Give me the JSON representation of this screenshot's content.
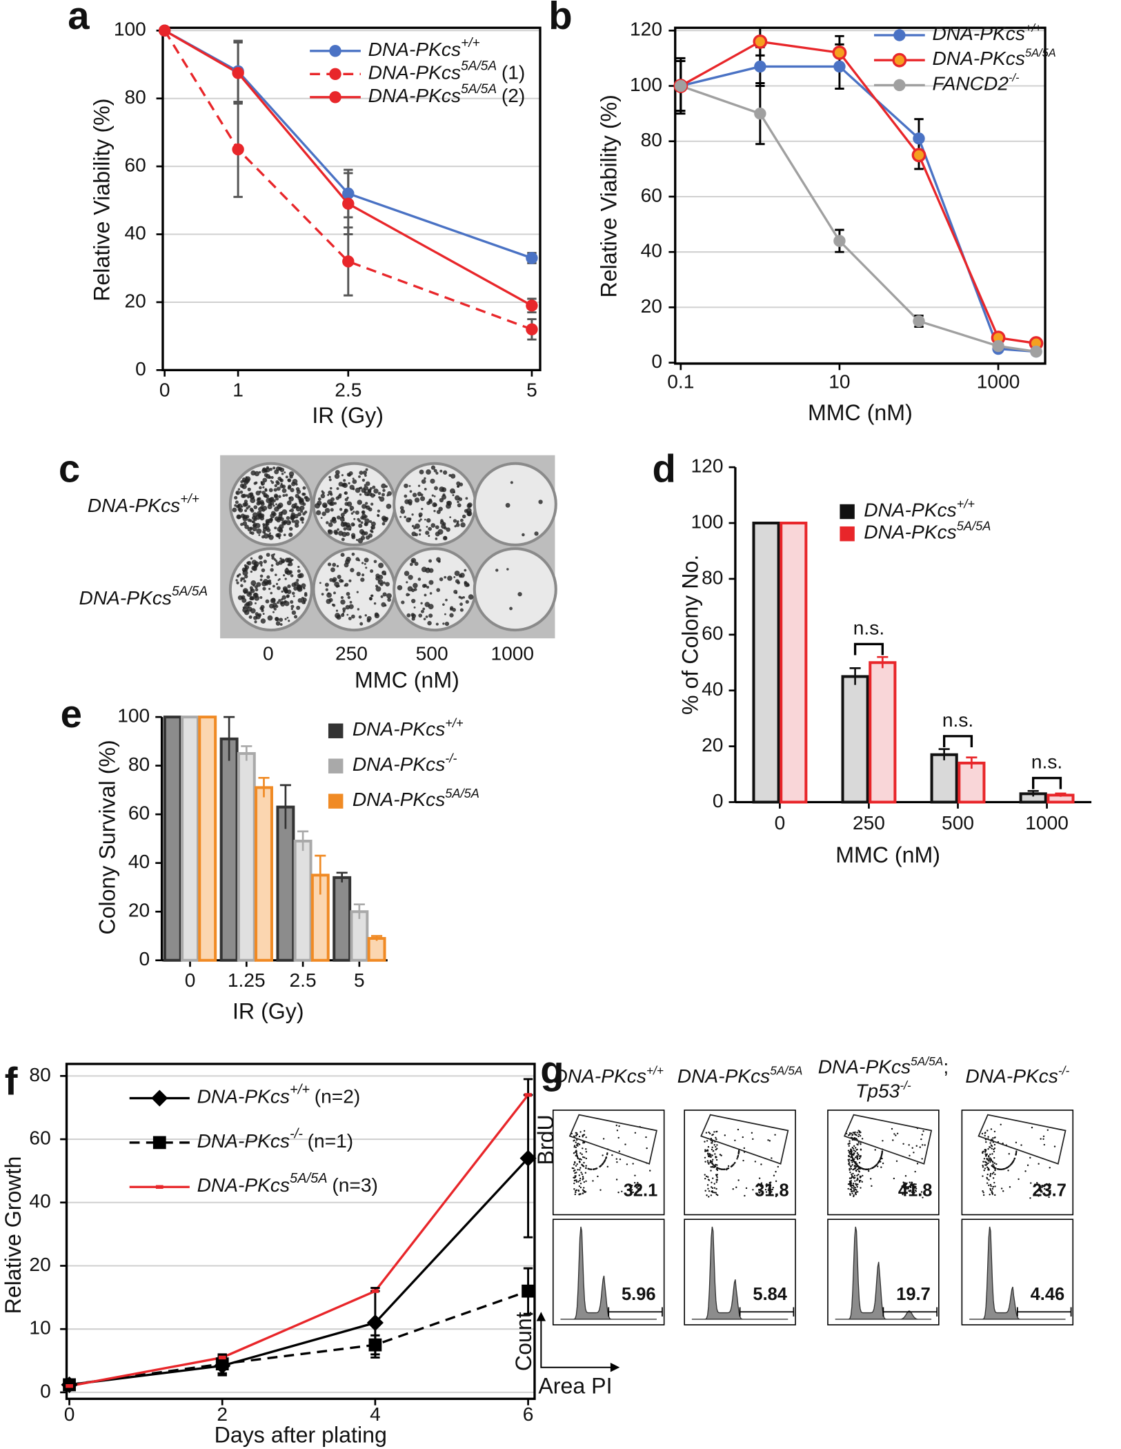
{
  "chart_data": [
    {
      "panel": "a",
      "type": "line",
      "xlabel": "IR (Gy)",
      "ylabel": "Relative Viability (%)",
      "x": [
        0,
        1,
        2.5,
        5
      ],
      "xlim": [
        0,
        5
      ],
      "xticks": [
        0,
        1,
        2.5,
        5
      ],
      "ylim": [
        0,
        100
      ],
      "yticks": [
        0,
        20,
        40,
        60,
        80,
        100
      ],
      "grid": true,
      "legend": "upper right",
      "error_color": "#555555",
      "series": [
        {
          "name": "DNA-PKcs",
          "sup": "+/+",
          "color": "#4a72c4",
          "values": [
            100,
            88,
            52,
            33
          ],
          "errors": [
            0,
            9,
            7,
            1.5
          ]
        },
        {
          "name": "DNA-PKcs",
          "sup": "5A/5A",
          "suffix": "(1)",
          "color": "#e8262a",
          "dash": true,
          "values": [
            100,
            65,
            32,
            12
          ],
          "errors": [
            0,
            14,
            10,
            3
          ]
        },
        {
          "name": "DNA-PKcs",
          "sup": "5A/5A",
          "suffix": "(2)",
          "color": "#e8262a",
          "values": [
            100,
            87.5,
            49,
            19
          ],
          "errors": [
            0,
            9,
            9,
            2
          ]
        }
      ]
    },
    {
      "panel": "b",
      "type": "line",
      "xlabel": "MMC (nM)",
      "ylabel": "Relative Viability (%)",
      "xscale": "log",
      "x": [
        0.1,
        1,
        10,
        100,
        1000,
        3000
      ],
      "xlim": [
        0.1,
        3500
      ],
      "xticks": [
        0.1,
        10,
        1000
      ],
      "ylim": [
        0,
        120
      ],
      "yticks": [
        0,
        20,
        40,
        60,
        80,
        100,
        120
      ],
      "grid": true,
      "legend": "upper right",
      "error_color": "#000000",
      "series": [
        {
          "name": "DNA-PKcs",
          "sup": "+/+",
          "color": "#4a72c4",
          "values": [
            100,
            107,
            107,
            81,
            5,
            4
          ],
          "errors": [
            10,
            7,
            8,
            7,
            1,
            1
          ]
        },
        {
          "name": "DNA-PKcs",
          "sup": "5A/5A",
          "color": "#e8262a",
          "marker_color": "#f5a020",
          "values": [
            100,
            116,
            112,
            75,
            9,
            7
          ],
          "errors": [
            9,
            5,
            6,
            5,
            1,
            1
          ]
        },
        {
          "name": "FANCD2",
          "sup": "-/-",
          "color": "#a0a0a0",
          "values": [
            100,
            90,
            44,
            15,
            6,
            4
          ],
          "errors": [
            9,
            11,
            4,
            2,
            1,
            1
          ]
        }
      ]
    },
    {
      "panel": "d",
      "type": "bar",
      "xlabel": "MMC (nM)",
      "ylabel": "% of Colony No.",
      "categories": [
        "0",
        "250",
        "500",
        "1000"
      ],
      "ylim": [
        0,
        120
      ],
      "yticks": [
        0,
        20,
        40,
        60,
        80,
        100,
        120
      ],
      "legend": "upper right",
      "series": [
        {
          "name": "DNA-PKcs",
          "sup": "+/+",
          "color": "#111111",
          "fill": "#d9d9d9",
          "values": [
            100,
            45,
            17,
            3
          ],
          "errors": [
            0,
            3,
            2,
            1
          ]
        },
        {
          "name": "DNA-PKcs",
          "sup": "5A/5A",
          "color": "#e8262a",
          "fill": "#f9d6d8",
          "values": [
            100,
            50,
            14,
            2.5
          ],
          "errors": [
            0,
            2,
            2,
            0.6
          ]
        }
      ],
      "annotations": [
        {
          "text": "n.s.",
          "x": "250"
        },
        {
          "text": "n.s.",
          "x": "500"
        },
        {
          "text": "n.s.",
          "x": "1000"
        }
      ]
    },
    {
      "panel": "e",
      "type": "bar",
      "xlabel": "IR (Gy)",
      "ylabel": "Colony Survival (%)",
      "categories": [
        "0",
        "1.25",
        "2.5",
        "5"
      ],
      "ylim": [
        0,
        100
      ],
      "yticks": [
        0,
        20,
        40,
        60,
        80,
        100
      ],
      "legend": "right",
      "series": [
        {
          "name": "DNA-PKcs",
          "sup": "+/+",
          "color": "#333333",
          "fill": "#8c8c8c",
          "values": [
            100,
            91,
            63,
            34
          ],
          "errors": [
            0,
            9,
            9,
            2
          ]
        },
        {
          "name": "DNA-PKcs",
          "sup": "-/-",
          "color": "#a9a9a9",
          "fill": "#e0e0e0",
          "values": [
            100,
            85,
            49,
            20
          ],
          "errors": [
            0,
            3,
            4,
            3
          ]
        },
        {
          "name": "DNA-PKcs",
          "sup": "5A/5A",
          "color": "#f08a24",
          "fill": "#fbd6b0",
          "values": [
            100,
            71,
            35,
            9
          ],
          "errors": [
            0,
            4,
            8,
            1
          ]
        }
      ]
    },
    {
      "panel": "f",
      "type": "line",
      "xlabel": "Days after plating",
      "ylabel": "Relative Growth",
      "x": [
        0,
        2,
        4,
        6
      ],
      "xlim": [
        0,
        6
      ],
      "xticks": [
        0,
        2,
        4,
        6
      ],
      "yscale": "piecewise",
      "ylim": [
        0,
        80
      ],
      "yticks": [
        0,
        10,
        20,
        40,
        60,
        80
      ],
      "grid": true,
      "legend": "upper left",
      "error_color": "#000000",
      "series": [
        {
          "name": "DNA-PKcs",
          "sup": "+/+",
          "suffix": "(n=2)",
          "color": "#000000",
          "marker": "diamond",
          "values": [
            1.2,
            4.2,
            11,
            54
          ],
          "errors": [
            0.5,
            1.5,
            5.5,
            25
          ]
        },
        {
          "name": "DNA-PKcs",
          "sup": "-/-",
          "suffix": "(n=1)",
          "color": "#000000",
          "marker": "square",
          "dash": true,
          "values": [
            1.2,
            4.5,
            7.5,
            16
          ],
          "errors": [
            0.5,
            1.5,
            1.5,
            3.6
          ]
        },
        {
          "name": "DNA-PKcs",
          "sup": "5A/5A",
          "suffix": "(n=3)",
          "color": "#e8262a",
          "marker": "line",
          "values": [
            1.0,
            5.5,
            16,
            74
          ],
          "errors": [
            0,
            0,
            0,
            0
          ]
        }
      ]
    }
  ],
  "plates": {
    "panel": "c",
    "rows": [
      {
        "name": "DNA-PKcs",
        "sup": "+/+"
      },
      {
        "name": "DNA-PKcs",
        "sup": "5A/5A"
      }
    ],
    "columns": [
      "0",
      "250",
      "500",
      "1000"
    ],
    "xlabel": "MMC (nM)"
  },
  "flow": {
    "panel": "g",
    "y_top": "BrdU",
    "y_bottom": "Count",
    "x": "Area PI",
    "columns": [
      {
        "name": "DNA-PKcs",
        "sup": "+/+",
        "brdu": 32.1,
        "pi": 5.96
      },
      {
        "name": "DNA-PKcs",
        "sup": "5A/5A",
        "brdu": 31.8,
        "pi": 5.84
      },
      {
        "name": "DNA-PKcs",
        "sup": "5A/5A",
        "suffix": ";",
        "name2": "Tp53",
        "sup2": "-/-",
        "brdu": 41.8,
        "pi": 19.7
      },
      {
        "name": "DNA-PKcs",
        "sup": "-/-",
        "brdu": 23.7,
        "pi": 4.46
      }
    ]
  }
}
